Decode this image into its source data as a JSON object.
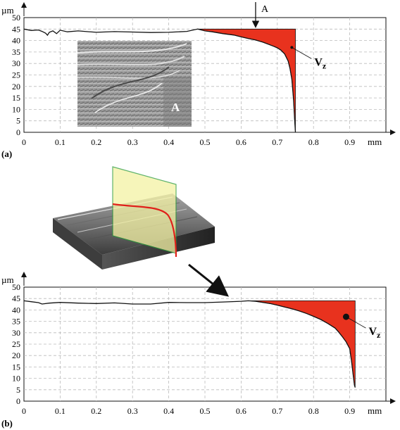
{
  "panels": [
    {
      "label": "(a)",
      "chart_data": {
        "type": "line",
        "xlabel": "mm",
        "ylabel": "µm",
        "xlim": [
          0,
          1.0
        ],
        "ylim": [
          0,
          50
        ],
        "x_ticks": [
          "0",
          "0.1",
          "0.2",
          "0.3",
          "0.4",
          "0.5",
          "0.6",
          "0.7",
          "0.8",
          "0.9"
        ],
        "y_ticks": [
          "0",
          "5",
          "10",
          "15",
          "20",
          "25",
          "30",
          "35",
          "40",
          "45",
          "50"
        ],
        "grid": true,
        "series": [
          {
            "x": [
              0,
              0.02,
              0.04,
              0.05,
              0.06,
              0.065,
              0.07,
              0.08,
              0.09,
              0.1,
              0.12,
              0.15,
              0.2,
              0.25,
              0.3,
              0.35,
              0.4,
              0.45,
              0.48,
              0.5,
              0.52,
              0.55,
              0.58,
              0.6,
              0.62,
              0.64,
              0.66,
              0.68,
              0.69,
              0.7,
              0.71,
              0.72,
              0.73,
              0.735,
              0.74,
              0.745,
              0.748,
              0.75
            ],
            "y": [
              45,
              44.4,
              44.6,
              44,
              43.2,
              42.3,
              43.6,
              44.2,
              43,
              44.5,
              43.8,
              44.2,
              43.6,
              43.9,
              43.7,
              43.5,
              43.6,
              44,
              45,
              44.2,
              43.8,
              43,
              42.4,
              41.6,
              40.9,
              40.2,
              39.3,
              38.1,
              37.5,
              36.8,
              35.8,
              34.2,
              31,
              27.8,
              23.2,
              14,
              5,
              0
            ]
          }
        ],
        "fill_color": "#e8321e",
        "fill_top": 45,
        "fill_right_x": 0.75,
        "annotations": {
          "arrow_label": "A",
          "arrow_x": 0.64,
          "volume_label": "Vz",
          "volume_point": [
            0.74,
            37
          ]
        },
        "inset_label": "A"
      }
    },
    {
      "label": "(b)",
      "chart_data": {
        "type": "line",
        "xlabel": "mm",
        "ylabel": "µm",
        "xlim": [
          0,
          1.0
        ],
        "ylim": [
          0,
          50
        ],
        "x_ticks": [
          "0",
          "0.1",
          "0.2",
          "0.3",
          "0.4",
          "0.5",
          "0.6",
          "0.7",
          "0.8",
          "0.9"
        ],
        "y_ticks": [
          "0",
          "5",
          "10",
          "15",
          "20",
          "25",
          "30",
          "35",
          "40",
          "45",
          "50"
        ],
        "grid": true,
        "series": [
          {
            "x": [
              0,
              0.02,
              0.04,
              0.05,
              0.07,
              0.1,
              0.15,
              0.2,
              0.25,
              0.3,
              0.35,
              0.4,
              0.45,
              0.5,
              0.55,
              0.6,
              0.62,
              0.64,
              0.66,
              0.68,
              0.7,
              0.72,
              0.74,
              0.76,
              0.78,
              0.8,
              0.82,
              0.84,
              0.86,
              0.87,
              0.88,
              0.89,
              0.9,
              0.905,
              0.91,
              0.913,
              0.915
            ],
            "y": [
              44,
              43.6,
              43.2,
              42.6,
              43,
              43.3,
              43,
              42.8,
              43.1,
              42.6,
              42.6,
              43.3,
              43.2,
              43.2,
              43.5,
              43.8,
              44,
              43.8,
              43.3,
              42.8,
              42.1,
              41.3,
              40.5,
              39.6,
              38.5,
              37.2,
              35.8,
              34,
              32,
              30.2,
              28.2,
              26,
              23,
              17.5,
              11,
              7,
              6
            ]
          }
        ],
        "fill_color": "#e8321e",
        "fill_top": 44,
        "fill_right_x": 0.915,
        "annotations": {
          "volume_label": "Vz",
          "volume_point": [
            0.89,
            37
          ]
        }
      }
    }
  ]
}
